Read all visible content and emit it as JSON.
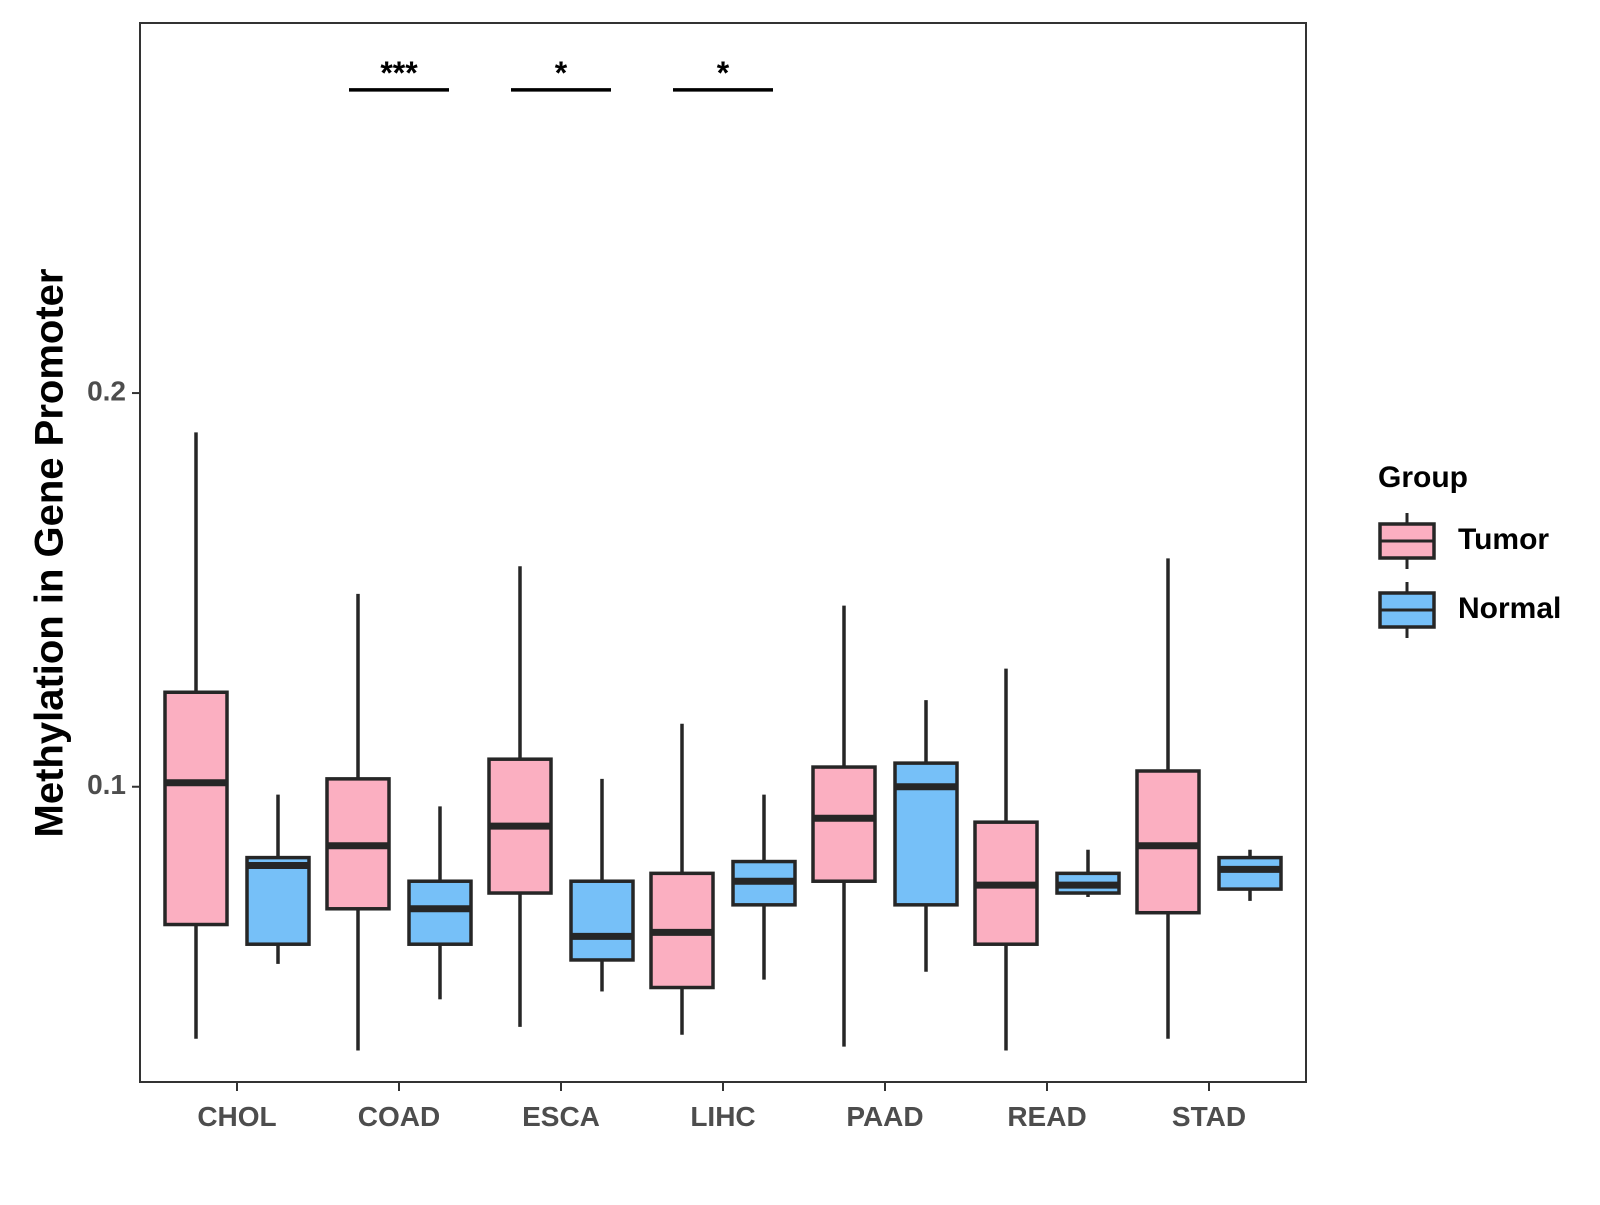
{
  "chart_data": {
    "type": "boxplot",
    "title": "",
    "xlabel": "",
    "ylabel": "Methylation in Gene Promoter",
    "ylim": [
      0.025,
      0.294
    ],
    "yticks": [
      0.1,
      0.2
    ],
    "ytick_labels": [
      "0.1",
      "0.2"
    ],
    "grid": false,
    "categories": [
      "CHOL",
      "COAD",
      "ESCA",
      "LIHC",
      "PAAD",
      "READ",
      "STAD"
    ],
    "legend": {
      "title": "Group",
      "position": "right",
      "entries": [
        {
          "name": "Tumor",
          "color": "#FBAFC1"
        },
        {
          "name": "Normal",
          "color": "#76C0F8"
        }
      ]
    },
    "series": [
      {
        "name": "Tumor",
        "color": "#FBAFC1",
        "boxes": [
          {
            "whislo": 0.036,
            "q1": 0.065,
            "med": 0.101,
            "q3": 0.124,
            "whishi": 0.19
          },
          {
            "whislo": 0.033,
            "q1": 0.069,
            "med": 0.085,
            "q3": 0.102,
            "whishi": 0.149
          },
          {
            "whislo": 0.039,
            "q1": 0.073,
            "med": 0.09,
            "q3": 0.107,
            "whishi": 0.156
          },
          {
            "whislo": 0.037,
            "q1": 0.049,
            "med": 0.063,
            "q3": 0.078,
            "whishi": 0.116
          },
          {
            "whislo": 0.034,
            "q1": 0.076,
            "med": 0.092,
            "q3": 0.105,
            "whishi": 0.146
          },
          {
            "whislo": 0.033,
            "q1": 0.06,
            "med": 0.075,
            "q3": 0.091,
            "whishi": 0.13
          },
          {
            "whislo": 0.036,
            "q1": 0.068,
            "med": 0.085,
            "q3": 0.104,
            "whishi": 0.158
          }
        ]
      },
      {
        "name": "Normal",
        "color": "#76C0F8",
        "boxes": [
          {
            "whislo": 0.055,
            "q1": 0.06,
            "med": 0.08,
            "q3": 0.082,
            "whishi": 0.098
          },
          {
            "whislo": 0.046,
            "q1": 0.06,
            "med": 0.069,
            "q3": 0.076,
            "whishi": 0.095
          },
          {
            "whislo": 0.048,
            "q1": 0.056,
            "med": 0.062,
            "q3": 0.076,
            "whishi": 0.102
          },
          {
            "whislo": 0.051,
            "q1": 0.07,
            "med": 0.076,
            "q3": 0.081,
            "whishi": 0.098
          },
          {
            "whislo": 0.053,
            "q1": 0.07,
            "med": 0.1,
            "q3": 0.106,
            "whishi": 0.122
          },
          {
            "whislo": 0.072,
            "q1": 0.073,
            "med": 0.075,
            "q3": 0.078,
            "whishi": 0.084
          },
          {
            "whislo": 0.071,
            "q1": 0.074,
            "med": 0.079,
            "q3": 0.082,
            "whishi": 0.084
          }
        ]
      }
    ],
    "significance": [
      {
        "category": "CHOL",
        "label": "",
        "y": 0.277
      },
      {
        "category": "COAD",
        "label": "***",
        "y": 0.277
      },
      {
        "category": "ESCA",
        "label": "*",
        "y": 0.277
      },
      {
        "category": "LIHC",
        "label": "*",
        "y": 0.277
      },
      {
        "category": "PAAD",
        "label": "",
        "y": 0.277
      },
      {
        "category": "READ",
        "label": "",
        "y": 0.277
      },
      {
        "category": "STAD",
        "label": "",
        "y": 0.277
      }
    ]
  }
}
